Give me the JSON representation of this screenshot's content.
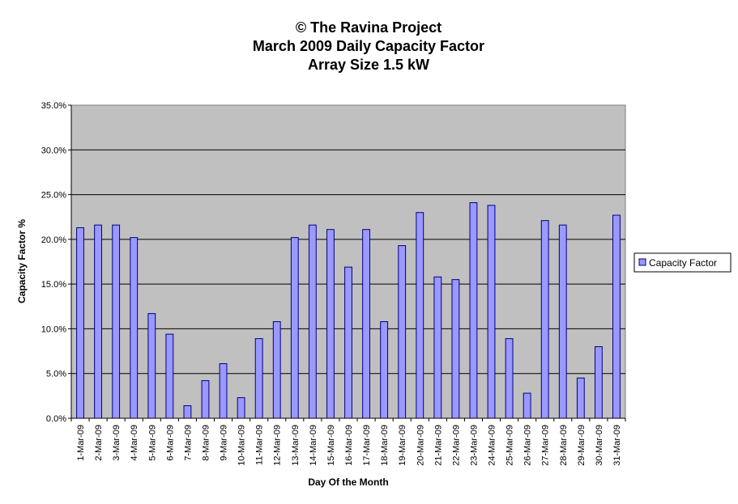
{
  "chart_data": {
    "type": "bar",
    "title_lines": [
      "© The Ravina Project",
      "March 2009 Daily Capacity Factor",
      "Array Size 1.5 kW"
    ],
    "xlabel": "Day Of the Month",
    "ylabel": "Capacity Factor %",
    "ylim": [
      0,
      35
    ],
    "y_ticks": [
      0,
      5,
      10,
      15,
      20,
      25,
      30,
      35
    ],
    "y_tick_labels": [
      "0.0%",
      "5.0%",
      "10.0%",
      "15.0%",
      "20.0%",
      "25.0%",
      "30.0%",
      "35.0%"
    ],
    "grid": true,
    "legend": "right",
    "categories": [
      "1-Mar-09",
      "2-Mar-09",
      "3-Mar-09",
      "4-Mar-09",
      "5-Mar-09",
      "6-Mar-09",
      "7-Mar-09",
      "8-Mar-09",
      "9-Mar-09",
      "10-Mar-09",
      "11-Mar-09",
      "12-Mar-09",
      "13-Mar-09",
      "14-Mar-09",
      "15-Mar-09",
      "16-Mar-09",
      "17-Mar-09",
      "18-Mar-09",
      "19-Mar-09",
      "20-Mar-09",
      "21-Mar-09",
      "22-Mar-09",
      "23-Mar-09",
      "24-Mar-09",
      "25-Mar-09",
      "26-Mar-09",
      "27-Mar-09",
      "28-Mar-09",
      "29-Mar-09",
      "30-Mar-09",
      "31-Mar-09"
    ],
    "series": [
      {
        "name": "Capacity Factor",
        "values": [
          21.3,
          21.6,
          21.6,
          20.2,
          11.7,
          9.4,
          1.4,
          4.2,
          6.1,
          2.3,
          8.9,
          10.8,
          20.2,
          21.6,
          21.1,
          16.9,
          21.1,
          10.8,
          19.3,
          23.0,
          15.8,
          15.5,
          24.1,
          23.8,
          8.9,
          2.8,
          22.1,
          21.6,
          4.5,
          8.0,
          22.7
        ]
      }
    ],
    "colors": {
      "bar_fill": "#9999ff",
      "bar_stroke": "#000080",
      "plot_background": "#c0c0c0",
      "grid": "#000000"
    }
  }
}
